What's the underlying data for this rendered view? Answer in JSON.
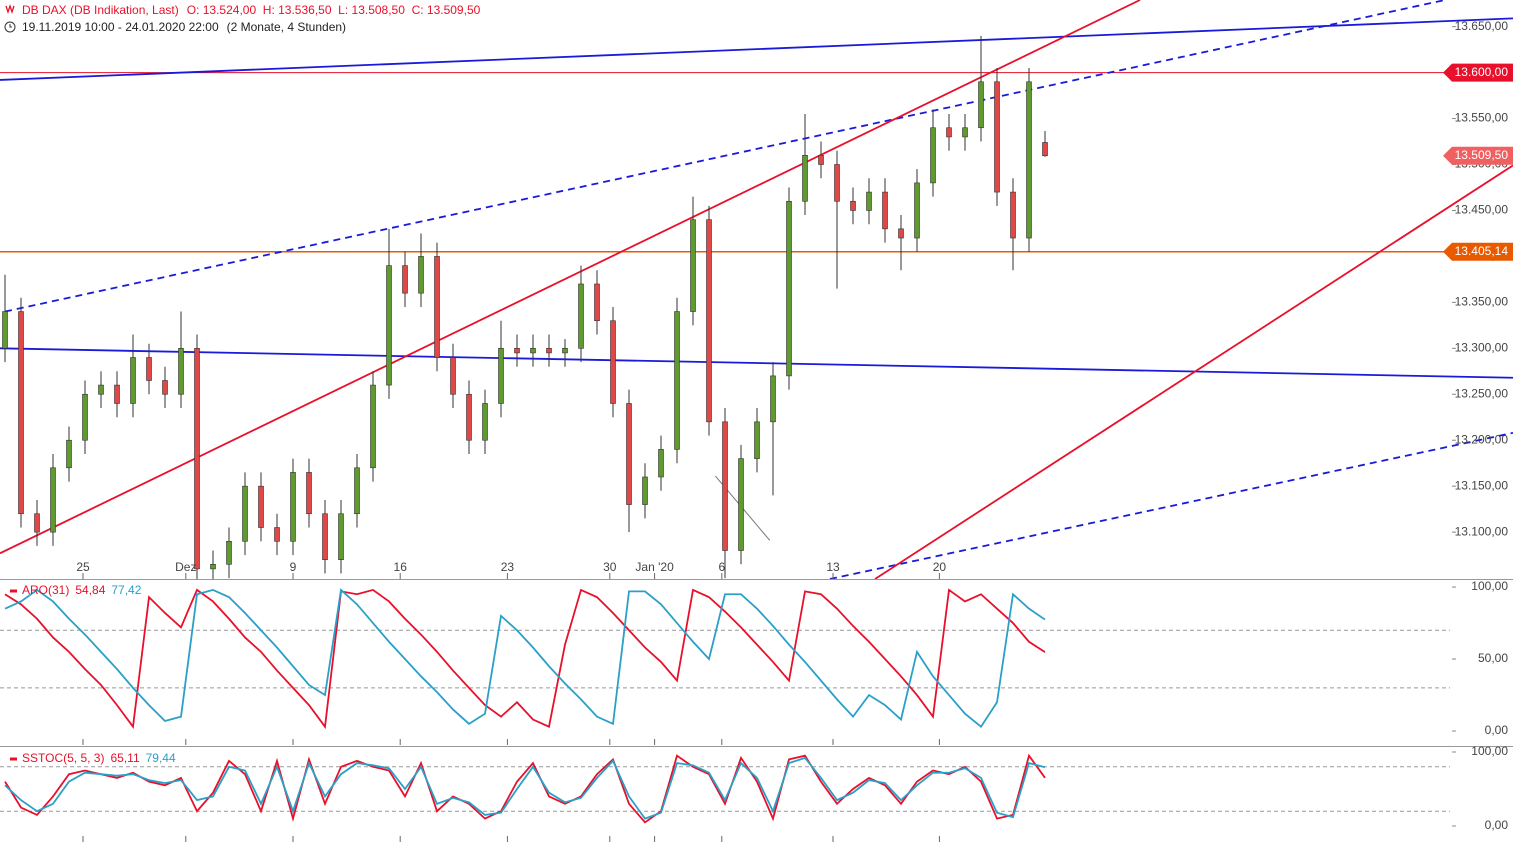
{
  "header": {
    "title": "DB DAX (DB Indikation, Last)",
    "ohlc": "O: 13.524,00  H: 13.536,50  L: 13.508,50  C: 13.509,50",
    "range": "19.11.2019 10:00 - 24.01.2020 22:00",
    "period": "(2 Monate, 4 Stunden)"
  },
  "chart_data": [
    {
      "type": "candlestick",
      "up_color": "#5f9a2e",
      "down_color": "#e04848",
      "open": [
        13300,
        13340,
        13120,
        13100,
        13170,
        13200,
        13250,
        13260,
        13240,
        13290,
        13265,
        13250,
        13300,
        13060,
        13065,
        13090,
        13150,
        13105,
        13090,
        13165,
        13120,
        13070,
        13120,
        13170,
        13260,
        13390,
        13360,
        13400,
        13290,
        13250,
        13200,
        13240,
        13300,
        13295,
        13300,
        13295,
        13300,
        13370,
        13330,
        13240,
        13130,
        13160,
        13190,
        13340,
        13440,
        13220,
        13080,
        13180,
        13220,
        13270,
        13460,
        13510,
        13500,
        13460,
        13450,
        13470,
        13430,
        13420,
        13480,
        13540,
        13530,
        13540,
        13590,
        13470,
        13420,
        13524
      ],
      "high": [
        13380,
        13355,
        13135,
        13185,
        13215,
        13265,
        13275,
        13275,
        13315,
        13305,
        13280,
        13340,
        13315,
        13080,
        13105,
        13165,
        13165,
        13120,
        13180,
        13180,
        13135,
        13135,
        13185,
        13275,
        13430,
        13405,
        13425,
        13415,
        13305,
        13265,
        13255,
        13330,
        13315,
        13315,
        13315,
        13310,
        13390,
        13385,
        13345,
        13255,
        13175,
        13205,
        13355,
        13465,
        13455,
        13235,
        13195,
        13235,
        13285,
        13475,
        13555,
        13525,
        13515,
        13475,
        13485,
        13485,
        13445,
        13495,
        13560,
        13555,
        13555,
        13640,
        13605,
        13485,
        13605,
        13536.5
      ],
      "low": [
        13285,
        13105,
        13085,
        13085,
        13155,
        13185,
        13235,
        13225,
        13225,
        13250,
        13235,
        13235,
        13045,
        13045,
        13050,
        13075,
        13090,
        13075,
        13075,
        13105,
        13055,
        13055,
        13105,
        13155,
        13245,
        13345,
        13345,
        13275,
        13235,
        13185,
        13185,
        13225,
        13280,
        13280,
        13280,
        13280,
        13285,
        13315,
        13225,
        13100,
        13115,
        13145,
        13175,
        13325,
        13205,
        13050,
        13065,
        13165,
        13140,
        13255,
        13445,
        13485,
        13365,
        13435,
        13435,
        13415,
        13385,
        13405,
        13465,
        13515,
        13515,
        13525,
        13455,
        13385,
        13405,
        13508.5
      ],
      "close": [
        13340,
        13120,
        13100,
        13170,
        13200,
        13250,
        13260,
        13240,
        13290,
        13265,
        13250,
        13300,
        13060,
        13065,
        13090,
        13150,
        13105,
        13090,
        13165,
        13120,
        13070,
        13120,
        13170,
        13260,
        13390,
        13360,
        13400,
        13290,
        13250,
        13200,
        13240,
        13300,
        13295,
        13300,
        13295,
        13300,
        13370,
        13330,
        13240,
        13130,
        13160,
        13190,
        13340,
        13440,
        13220,
        13080,
        13180,
        13220,
        13270,
        13460,
        13510,
        13500,
        13460,
        13450,
        13470,
        13430,
        13420,
        13480,
        13540,
        13530,
        13540,
        13590,
        13470,
        13420,
        13590,
        13509.5
      ],
      "xlim": [
        -0.3125,
        94.25
      ],
      "xticks": [
        {
          "value": 4.875,
          "label": "25"
        },
        {
          "value": 11.3,
          "label": "Dez"
        },
        {
          "value": 18,
          "label": "9"
        },
        {
          "value": 24.7,
          "label": "16"
        },
        {
          "value": 31.4,
          "label": "23"
        },
        {
          "value": 37.8,
          "label": "30"
        },
        {
          "value": 40.6,
          "label": "Jan '20"
        },
        {
          "value": 44.8,
          "label": "6"
        },
        {
          "value": 51.75,
          "label": "13"
        },
        {
          "value": 58.4,
          "label": "20"
        }
      ],
      "ylim": [
        13049,
        13679
      ],
      "yticks": [
        {
          "value": 13100,
          "label": "13.100,00"
        },
        {
          "value": 13150,
          "label": "13.150,00"
        },
        {
          "value": 13200,
          "label": "13.200,00"
        },
        {
          "value": 13250,
          "label": "13.250,00"
        },
        {
          "value": 13300,
          "label": "13.300,00"
        },
        {
          "value": 13350,
          "label": "13.350,00"
        },
        {
          "value": 13400,
          "label": "13.400,00"
        },
        {
          "value": 13450,
          "label": "13.450,00"
        },
        {
          "value": 13500,
          "label": "13.500,00"
        },
        {
          "value": 13550,
          "label": "13.550,00"
        },
        {
          "value": 13600,
          "label": "13.600,00"
        },
        {
          "value": 13650,
          "label": "13.650,00"
        }
      ],
      "lines": [
        {
          "color": "#1a1adb",
          "dashed": false,
          "from": [
            -0.3125,
            13592
          ],
          "to": [
            94.25,
            13659
          ]
        },
        {
          "color": "#1a1adb",
          "dashed": false,
          "from": [
            -0.3125,
            13300
          ],
          "to": [
            94.25,
            13268
          ]
        },
        {
          "color": "#1a1adb",
          "dashed": true,
          "from": [
            0,
            13340
          ],
          "to": [
            90,
            13679
          ]
        },
        {
          "color": "#1a1adb",
          "dashed": true,
          "from": [
            51.56,
            13049
          ],
          "to": [
            94.25,
            13208
          ]
        },
        {
          "color": "#e8102a",
          "dashed": false,
          "from": [
            -0.3125,
            13077
          ],
          "to": [
            70.94,
            13679
          ]
        },
        {
          "color": "#e8102a",
          "dashed": false,
          "from": [
            54.375,
            13049
          ],
          "to": [
            94.25,
            13499
          ]
        },
        {
          "color": "#777777",
          "dashed": false,
          "from": [
            44.4,
            13161
          ],
          "to": [
            47.8,
            13091
          ]
        }
      ],
      "price_markers": [
        {
          "value": 13600,
          "label": "13.600,00",
          "color": "#e8102a",
          "line": true
        },
        {
          "value": 13509.5,
          "label": "13.509,50",
          "color": "#f06060",
          "line": false
        },
        {
          "value": 13405.14,
          "label": "13.405,14",
          "color": "#e85a00",
          "line": true
        }
      ]
    },
    {
      "type": "line",
      "title": "ARO(31)",
      "ylim": [
        -9.7,
        104.9
      ],
      "yticks": [
        {
          "value": 0,
          "label": "0,00"
        },
        {
          "value": 50,
          "label": "50,00"
        },
        {
          "value": 100,
          "label": "100,00"
        }
      ],
      "levels": [
        30,
        70
      ],
      "series": [
        {
          "color": "#e8102a",
          "value_label": "54,84",
          "values": [
            95,
            88,
            78,
            65,
            55,
            43,
            32,
            18,
            3,
            93,
            82,
            72,
            98,
            90,
            78,
            65,
            55,
            42,
            30,
            18,
            3,
            97,
            95,
            98,
            90,
            78,
            67,
            55,
            42,
            30,
            18,
            10,
            20,
            8,
            3,
            60,
            98,
            93,
            82,
            70,
            58,
            48,
            35,
            98,
            93,
            83,
            72,
            60,
            48,
            35,
            97,
            95,
            85,
            73,
            62,
            50,
            38,
            25,
            10,
            98,
            90,
            95,
            85,
            75,
            62,
            54.84
          ]
        },
        {
          "color": "#2aa0c8",
          "value_label": "77,42",
          "values": [
            85,
            90,
            98,
            90,
            78,
            67,
            55,
            43,
            30,
            18,
            7,
            10,
            95,
            98,
            93,
            82,
            70,
            58,
            45,
            32,
            25,
            98,
            88,
            75,
            62,
            50,
            38,
            27,
            15,
            5,
            12,
            80,
            70,
            58,
            45,
            33,
            22,
            10,
            5,
            97,
            97,
            88,
            75,
            62,
            50,
            95,
            95,
            85,
            73,
            60,
            48,
            35,
            22,
            10,
            25,
            18,
            8,
            55,
            38,
            25,
            12,
            3,
            20,
            95,
            85,
            77.42
          ]
        }
      ]
    },
    {
      "type": "line",
      "title": "SSTOC(5, 5, 3)",
      "ylim": [
        -21.6,
        105.4
      ],
      "yticks": [
        {
          "value": 0,
          "label": "0,00"
        },
        {
          "value": 100,
          "label": "100,00"
        }
      ],
      "levels": [
        20,
        80
      ],
      "series": [
        {
          "color": "#e8102a",
          "value_label": "65,11",
          "values": [
            60,
            25,
            15,
            40,
            70,
            75,
            70,
            65,
            72,
            60,
            55,
            65,
            20,
            45,
            88,
            70,
            20,
            88,
            10,
            90,
            30,
            80,
            88,
            80,
            75,
            40,
            85,
            20,
            40,
            30,
            10,
            20,
            60,
            85,
            40,
            30,
            40,
            70,
            90,
            30,
            5,
            20,
            95,
            80,
            70,
            30,
            92,
            60,
            10,
            90,
            95,
            60,
            30,
            50,
            65,
            55,
            30,
            60,
            75,
            70,
            80,
            60,
            10,
            15,
            95,
            65.11
          ]
        },
        {
          "color": "#2aa0c8",
          "value_label": "79,44",
          "values": [
            55,
            35,
            20,
            30,
            60,
            72,
            70,
            68,
            70,
            62,
            58,
            62,
            35,
            40,
            80,
            75,
            30,
            80,
            20,
            85,
            40,
            70,
            85,
            82,
            78,
            50,
            80,
            30,
            38,
            32,
            15,
            18,
            50,
            80,
            45,
            32,
            38,
            65,
            88,
            40,
            10,
            18,
            85,
            82,
            72,
            35,
            85,
            65,
            20,
            85,
            92,
            65,
            35,
            45,
            62,
            58,
            35,
            55,
            72,
            72,
            78,
            65,
            18,
            12,
            85,
            79.44
          ]
        }
      ]
    }
  ]
}
